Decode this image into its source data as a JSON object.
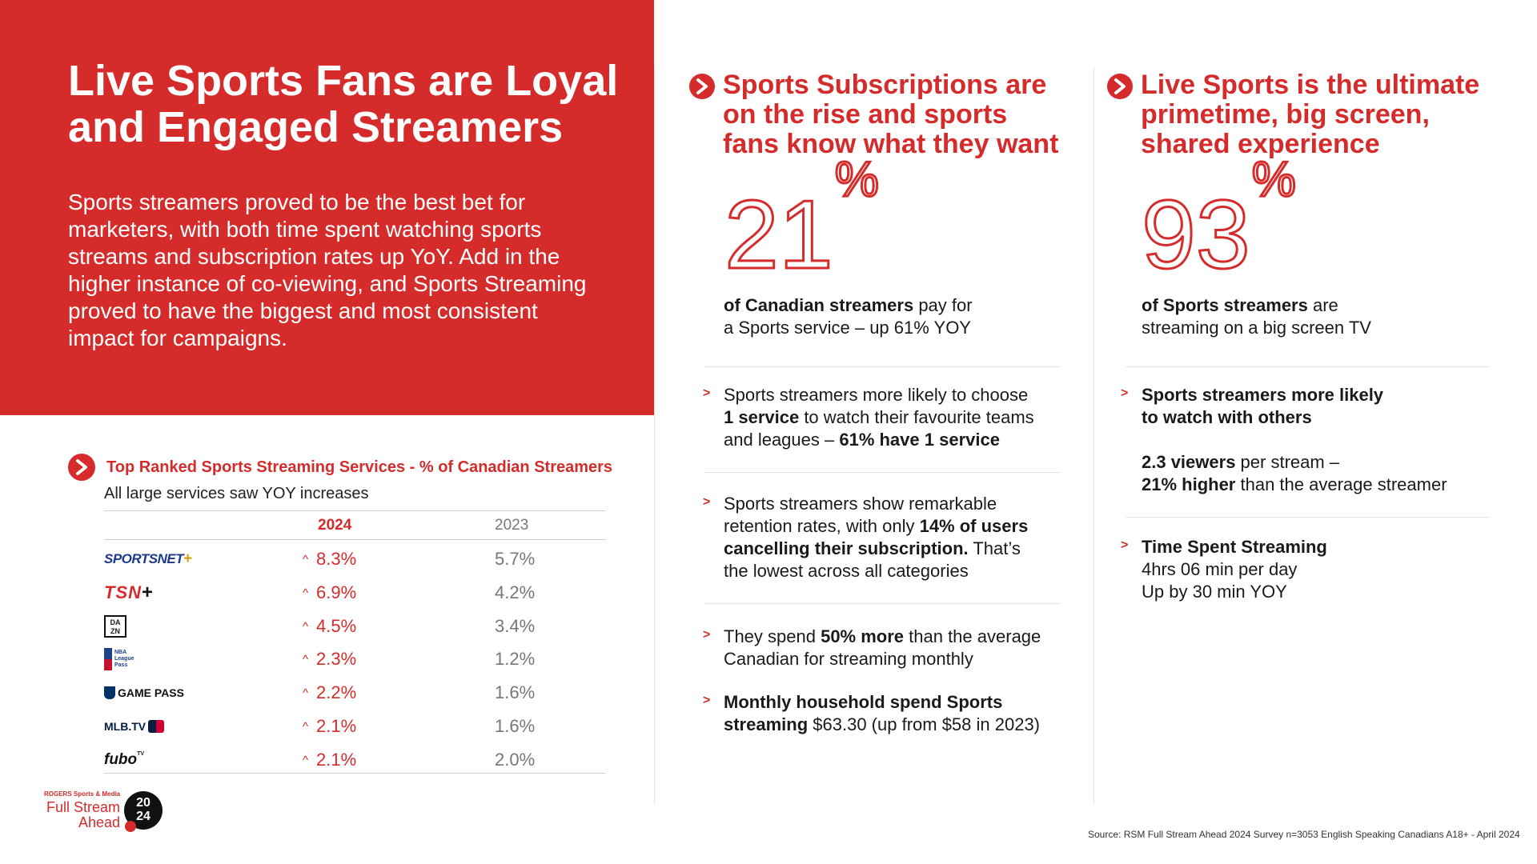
{
  "hero": {
    "title_line1": "Live Sports Fans are Loyal",
    "title_line2": "and Engaged Streamers",
    "intro": "Sports streamers proved to be the best bet for marketers, with both time spent watching sports streams and subscription rates up YoY. Add in the higher instance of co-viewing, and Sports Streaming proved to have the biggest and most consistent impact for campaigns."
  },
  "table": {
    "title": "Top Ranked Sports Streaming Services - % of Canadian Streamers",
    "subtitle": "All large services saw YOY increases",
    "col_2024": "2024",
    "col_2023": "2023",
    "up_glyph": "^",
    "rows": [
      {
        "service": "SPORTSNET+",
        "v2024": "8.3%",
        "v2023": "5.7%"
      },
      {
        "service": "TSN+",
        "v2024": "6.9%",
        "v2023": "4.2%"
      },
      {
        "service": "DAZN",
        "v2024": "4.5%",
        "v2023": "3.4%"
      },
      {
        "service": "NBA League Pass",
        "v2024": "2.3%",
        "v2023": "1.2%"
      },
      {
        "service": "GAMEPASS",
        "v2024": "2.2%",
        "v2023": "1.6%"
      },
      {
        "service": "MLB.TV",
        "v2024": "2.1%",
        "v2023": "1.6%"
      },
      {
        "service": "fubo TV",
        "v2024": "2.1%",
        "v2023": "2.0%"
      }
    ],
    "logo_text": {
      "sportsnet": "SPORTSNET",
      "tsn": "TSN",
      "dazn_top": "DA",
      "dazn_bottom": "ZN",
      "nba": "NBA League Pass",
      "gamepass": "GAME PASS",
      "mlb": "MLB.TV",
      "fubo": "fubo",
      "fubo_tv": "TV"
    }
  },
  "brand": {
    "top": "ROGERS Sports & Media",
    "line1": "Full Stream",
    "line2": "Ahead",
    "year_top": "20",
    "year_bottom": "24"
  },
  "col_subs": {
    "head_l1": "Sports Subscriptions are",
    "head_l2": "on the rise and sports",
    "head_l3": "fans know what they want",
    "big_number": "21",
    "big_pct": "%",
    "stat_bold": "of Canadian streamers",
    "stat_rest": " pay for",
    "stat_line2": "a Sports service – up 61% YOY",
    "b1_l1": "Sports streamers more likely to choose",
    "b1_bold1": "1 service",
    "b1_l2_rest": " to watch their favourite teams",
    "b1_l3_pre": "and leagues – ",
    "b1_bold2": "61% have 1 service",
    "b2_l1": "Sports streamers show remarkable",
    "b2_l2_pre": "retention rates, with only ",
    "b2_bold1": "14% of users",
    "b2_bold2": "cancelling their subscription.",
    "b2_l3_rest": " That’s",
    "b2_l4": "the lowest across all categories",
    "b3_pre": "They spend ",
    "b3_bold": "50% more",
    "b3_rest": " than the average",
    "b3_l2": "Canadian for streaming monthly",
    "b4_bold1": "Monthly household spend Sports",
    "b4_bold2": "streaming",
    "b4_rest": " $63.30 (up from $58 in 2023)",
    "marker": ">"
  },
  "col_live": {
    "head_l1": "Live Sports is the ultimate",
    "head_l2": "primetime, big screen,",
    "head_l3": "shared experience",
    "big_number": "93",
    "big_pct": "%",
    "stat_bold": "of Sports streamers",
    "stat_rest": " are",
    "stat_line2": "streaming on a big screen TV",
    "b1_bold1": "Sports streamers more likely",
    "b1_bold2": "to watch with others",
    "viewers_bold": "2.3 viewers",
    "viewers_rest": " per stream –",
    "higher_bold": "21% higher",
    "higher_rest": " than the average streamer",
    "b2_bold": "Time Spent Streaming",
    "b2_l2": "4hrs 06 min per day",
    "b2_l3": "Up by 30 min YOY",
    "marker": ">"
  },
  "source": "Source: RSM Full Stream Ahead 2024 Survey n=3053 English Speaking Canadians A18+ - April 2024",
  "colors": {
    "accent": "#d52b2b",
    "text": "#1a1a1a",
    "muted": "#777777"
  }
}
